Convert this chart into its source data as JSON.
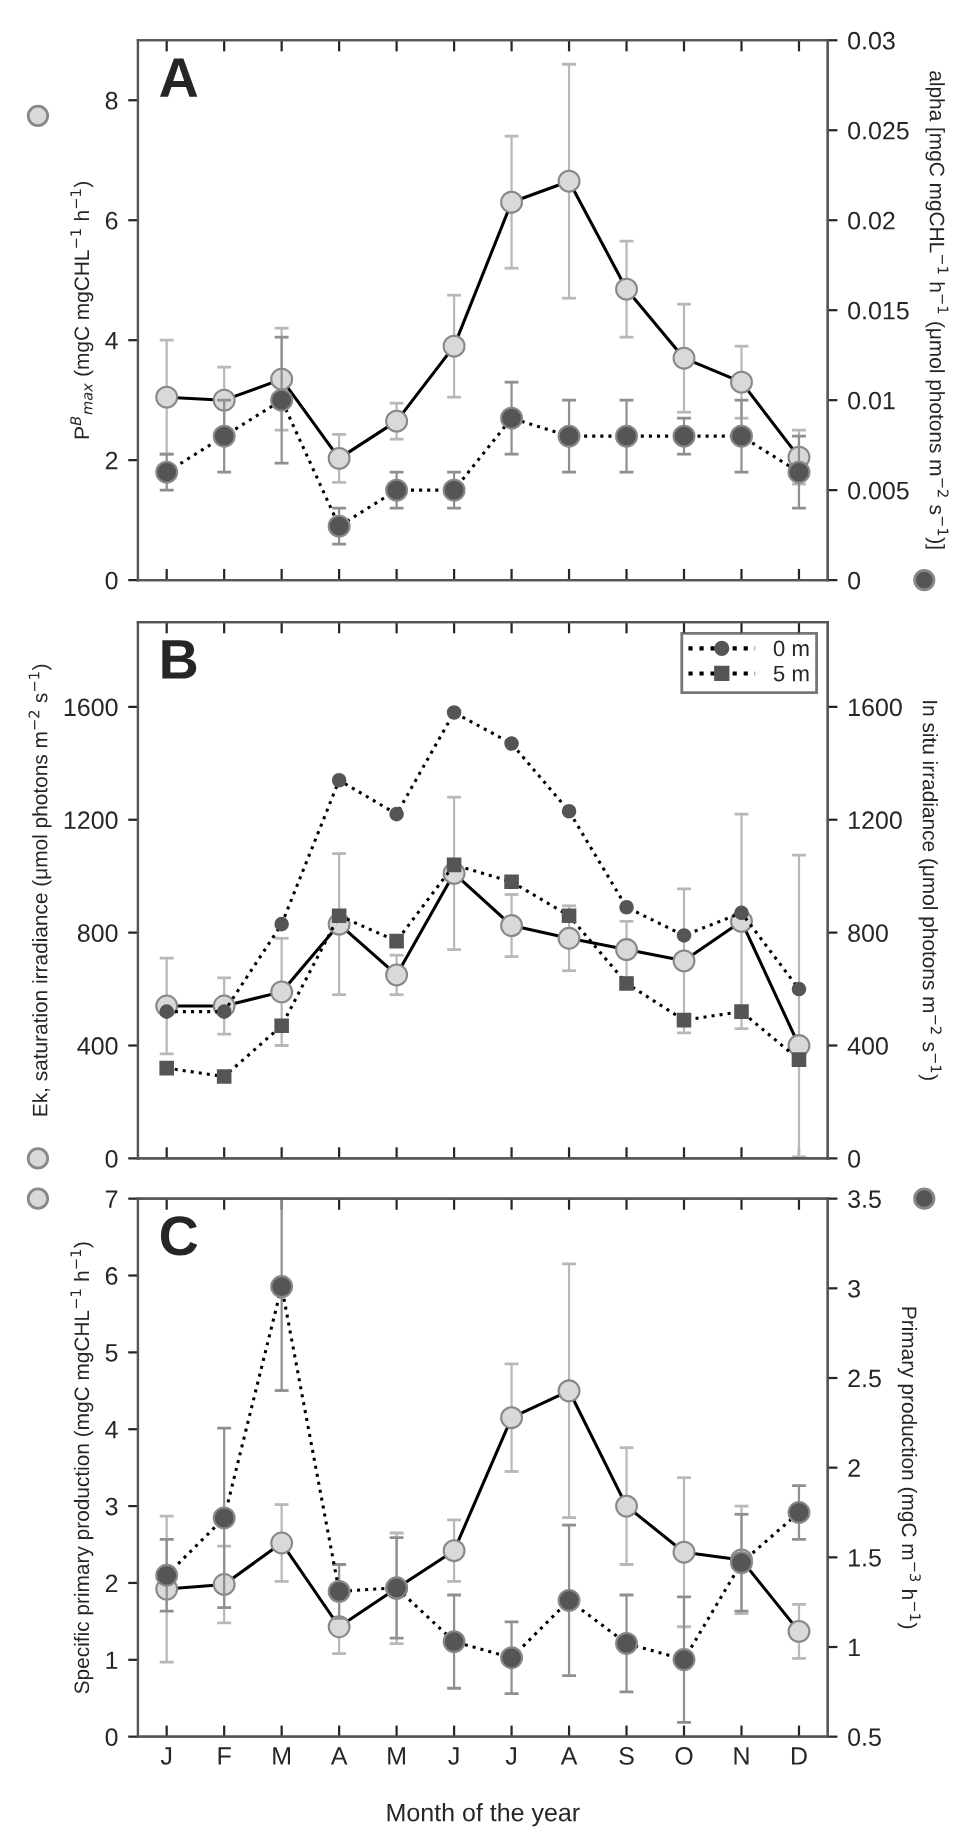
{
  "chart_data": [
    {
      "type": "line",
      "annotations": [
        "A"
      ],
      "ylabel": "P$^{B}$$_{max}$ (mgC mgCHL$^{−1}$ h$^{−1}$)",
      "y2label": "alpha [mgC mgCHL$^{−1}$ h$^{−1}$ (μmol photons m$^{−2}$ s$^{−1}$)]",
      "categories": [
        null,
        null,
        null,
        null,
        null,
        null,
        null,
        null,
        null,
        null,
        null,
        null
      ],
      "ylim": [
        0,
        9
      ],
      "yticks": [
        0,
        2,
        4,
        6,
        8
      ],
      "y2lim": [
        0,
        0.03
      ],
      "y2ticks": [
        0,
        0.005,
        0.01,
        0.015,
        0.02,
        0.025,
        0.03
      ],
      "tick_labels": "y",
      "grid": false,
      "legend": false,
      "series": [
        {
          "color": "#d9d9d9",
          "marker": "circle",
          "line_style": "solid",
          "values": [
            3.05,
            3.0,
            3.35,
            2.03,
            2.65,
            3.9,
            6.3,
            6.65,
            4.85,
            3.7,
            3.3,
            2.05
          ],
          "errors": [
            0.95,
            0.55,
            0.85,
            0.4,
            0.3,
            0.85,
            1.1,
            1.95,
            0.8,
            0.9,
            0.6,
            0.45
          ]
        },
        {
          "color": "#555555",
          "marker": "circle",
          "line_style": "dotted",
          "axis": "y2",
          "values": [
            0.006,
            0.008,
            0.01,
            0.003,
            0.005,
            0.005,
            0.009,
            0.008,
            0.008,
            0.008,
            0.008,
            0.006
          ],
          "errors": [
            0.001,
            0.002,
            0.0035,
            0.001,
            0.001,
            0.001,
            0.002,
            0.002,
            0.002,
            0.001,
            0.002,
            0.002
          ]
        }
      ]
    },
    {
      "type": "line",
      "annotations": [
        "B"
      ],
      "ylabel": "Ek, saturation irradiance (μmol photons m$^{−2}$ s$^{−1}$)",
      "y2label": "In situ irradiance (μmol photons m$^{−2}$ s$^{−1}$)",
      "categories": [
        null,
        null,
        null,
        null,
        null,
        null,
        null,
        null,
        null,
        null,
        null,
        null
      ],
      "ylim": [
        0,
        1900
      ],
      "yticks": [
        0,
        400,
        800,
        1200,
        1600
      ],
      "y2lim": [
        0,
        1900
      ],
      "y2ticks": [
        0,
        400,
        800,
        1200,
        1600
      ],
      "tick_labels": "y",
      "grid": false,
      "legend": "top right",
      "series": [
        {
          "color": "#d9d9d9",
          "marker": "circle",
          "line_style": "solid",
          "values": [
            540,
            540,
            590,
            830,
            650,
            1010,
            825,
            780,
            740,
            700,
            840,
            400
          ],
          "errors": [
            170,
            100,
            190,
            250,
            70,
            270,
            110,
            115,
            100,
            255,
            380,
            [
              5,
              1075
            ]
          ]
        },
        {
          "name": "0 m",
          "color": "#555555",
          "marker": "circle",
          "line_style": "dotted",
          "axis": "y2",
          "values": [
            520,
            520,
            830,
            1340,
            1220,
            1580,
            1470,
            1230,
            890,
            790,
            870,
            600
          ]
        },
        {
          "name": "5 m",
          "color": "#555555",
          "marker": "square",
          "line_style": "dotted",
          "axis": "y2",
          "values": [
            320,
            290,
            470,
            860,
            770,
            1040,
            980,
            860,
            620,
            490,
            520,
            350
          ]
        }
      ]
    },
    {
      "type": "line",
      "annotations": [
        "C"
      ],
      "xlabel": "Month of the year",
      "ylabel": "Specific primary production (mgC mgCHL$^{−1}$ h$^{−1}$)",
      "y2label": "Primary production (mgC m$^{−3}$ h$^{−1}$)",
      "categories": [
        "J",
        "F",
        "M",
        "A",
        "M",
        "J",
        "J",
        "A",
        "S",
        "O",
        "N",
        "D"
      ],
      "ylim": [
        0,
        7
      ],
      "yticks": [
        0,
        1,
        2,
        3,
        4,
        5,
        6,
        7
      ],
      "y2lim": [
        0.5,
        3.5
      ],
      "y2ticks": [
        0.5,
        1,
        1.5,
        2,
        2.5,
        3,
        3.5
      ],
      "grid": false,
      "legend": false,
      "series": [
        {
          "color": "#d9d9d9",
          "marker": "circle",
          "line_style": "solid",
          "values": [
            1.92,
            1.98,
            2.52,
            1.43,
            1.93,
            2.42,
            4.15,
            4.5,
            3.0,
            2.4,
            2.3,
            1.37
          ],
          "errors": [
            0.95,
            0.5,
            0.5,
            0.35,
            0.72,
            0.4,
            0.7,
            1.65,
            0.76,
            0.97,
            0.7,
            0.35
          ]
        },
        {
          "color": "#555555",
          "marker": "circle",
          "line_style": "dotted",
          "axis": "y2",
          "values": [
            1.4,
            1.72,
            3.01,
            1.31,
            1.33,
            1.03,
            0.94,
            1.26,
            1.02,
            0.93,
            1.47,
            1.75
          ],
          "errors": [
            0.2,
            0.5,
            [
              2.43,
              3.5
            ],
            0.15,
            0.28,
            0.26,
            0.2,
            0.42,
            0.27,
            0.35,
            0.27,
            0.15
          ]
        }
      ]
    }
  ]
}
